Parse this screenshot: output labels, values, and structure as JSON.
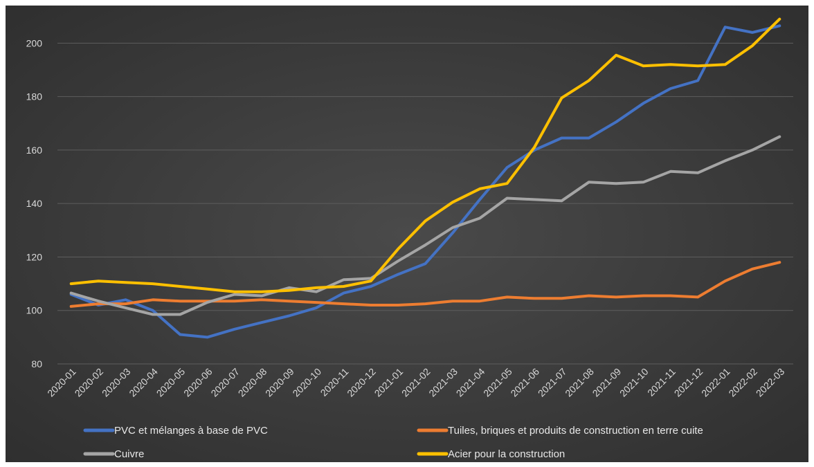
{
  "chart_data": {
    "type": "line",
    "title": "",
    "xlabel": "",
    "ylabel": "",
    "ylim": [
      80,
      212
    ],
    "yticks": [
      80,
      100,
      120,
      140,
      160,
      180,
      200
    ],
    "grid": true,
    "legend_position": "bottom",
    "categories": [
      "2020-01",
      "2020-02",
      "2020-03",
      "2020-04",
      "2020-05",
      "2020-06",
      "2020-07",
      "2020-08",
      "2020-09",
      "2020-10",
      "2020-11",
      "2020-12",
      "2021-01",
      "2021-02",
      "2021-03",
      "2021-04",
      "2021-05",
      "2021-06",
      "2021-07",
      "2021-08",
      "2021-09",
      "2021-10",
      "2021-11",
      "2021-12",
      "2022-01",
      "2022-02",
      "2022-03"
    ],
    "series": [
      {
        "name": "PVC et mélanges à base de PVC",
        "color": "#4472c4",
        "values": [
          106,
          102,
          104,
          100,
          91,
          90,
          93,
          95.5,
          98,
          101,
          106.5,
          109,
          113.5,
          117.5,
          129,
          141.5,
          153.5,
          160,
          164.5,
          164.5,
          170.5,
          177.5,
          183,
          186,
          206,
          204,
          206.5
        ]
      },
      {
        "name": "Tuiles, briques et produits de construction en terre cuite",
        "color": "#ed7d31",
        "values": [
          101.5,
          102.5,
          102.5,
          104,
          103.5,
          103.5,
          103.5,
          104,
          103.5,
          103,
          102.5,
          102,
          102,
          102.5,
          103.5,
          103.5,
          105,
          104.5,
          104.5,
          105.5,
          105,
          105.5,
          105.5,
          105,
          111,
          115.5,
          118
        ]
      },
      {
        "name": "Cuivre",
        "color": "#a5a5a5",
        "values": [
          106.5,
          103.5,
          101,
          98.5,
          98.5,
          103,
          106,
          105.5,
          108.5,
          107,
          111.5,
          112,
          118.5,
          124.5,
          131,
          134.5,
          142,
          141.5,
          141,
          148,
          147.5,
          148,
          152,
          151.5,
          156,
          160,
          165
        ]
      },
      {
        "name": "Acier pour la construction",
        "color": "#ffc000",
        "values": [
          110,
          111,
          110.5,
          110,
          109,
          108,
          107,
          107,
          107.5,
          108.5,
          109,
          111,
          123,
          133.5,
          140.5,
          145.5,
          147.5,
          161,
          179.5,
          186,
          195.5,
          191.5,
          192,
          191.5,
          192,
          199,
          209
        ]
      }
    ]
  }
}
